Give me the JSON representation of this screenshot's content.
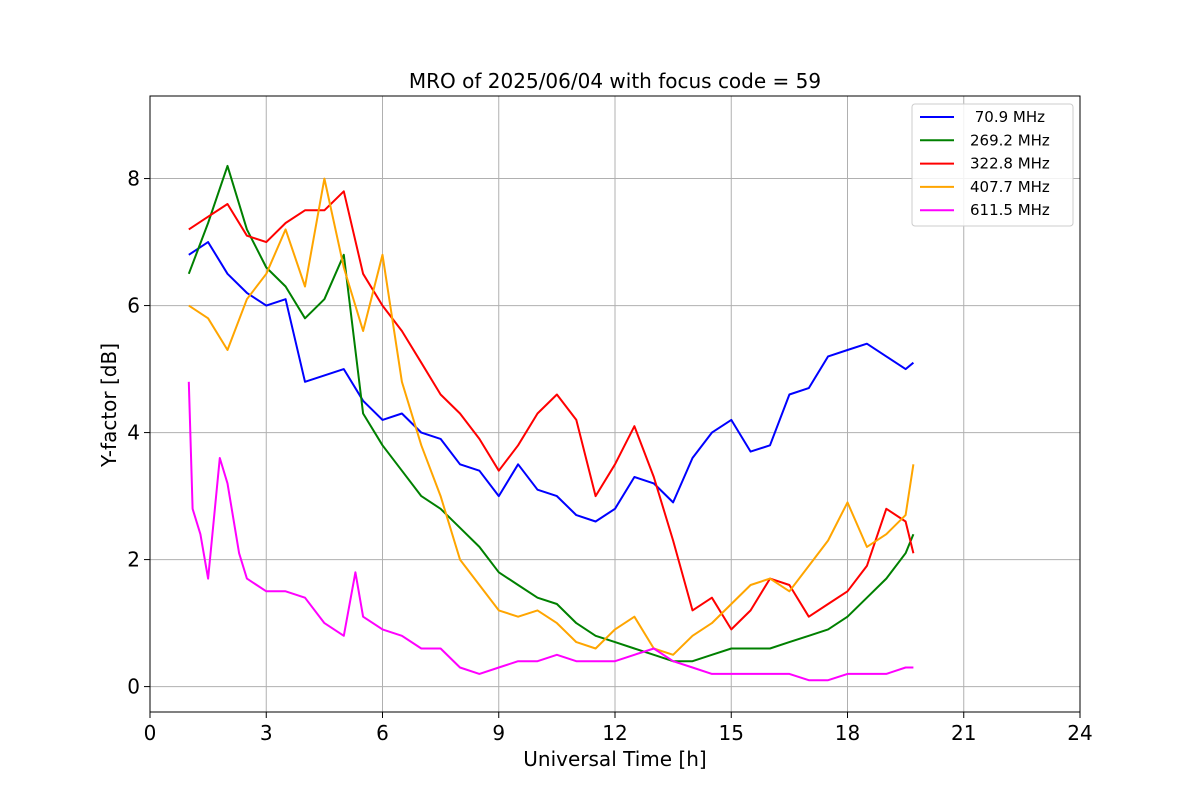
{
  "chart_data": {
    "type": "line",
    "title": "MRO of 2025/06/04 with focus code = 59",
    "xlabel": "Universal Time [h]",
    "ylabel": "Y-factor [dB]",
    "xlim": [
      0,
      24
    ],
    "ylim": [
      -0.4,
      9.3
    ],
    "xticks": [
      0,
      3,
      6,
      9,
      12,
      15,
      18,
      21,
      24
    ],
    "yticks": [
      0,
      2,
      4,
      6,
      8
    ],
    "grid": true,
    "legend_position": "top-right",
    "series": [
      {
        "name": " 70.9 MHz",
        "color": "#0000ff",
        "x": [
          1.0,
          1.5,
          2.0,
          2.5,
          3.0,
          3.5,
          4.0,
          4.5,
          5.0,
          5.5,
          6.0,
          6.5,
          7.0,
          7.5,
          8.0,
          8.5,
          9.0,
          9.5,
          10.0,
          10.5,
          11.0,
          11.5,
          12.0,
          12.5,
          13.0,
          13.5,
          14.0,
          14.5,
          15.0,
          15.5,
          16.0,
          16.5,
          17.0,
          17.5,
          18.0,
          18.5,
          19.0,
          19.5,
          19.7
        ],
        "y": [
          6.8,
          7.0,
          6.5,
          6.2,
          6.0,
          6.1,
          4.8,
          4.9,
          5.0,
          4.5,
          4.2,
          4.3,
          4.0,
          3.9,
          3.5,
          3.4,
          3.0,
          3.5,
          3.1,
          3.0,
          2.7,
          2.6,
          2.8,
          3.3,
          3.2,
          2.9,
          3.6,
          4.0,
          4.2,
          3.7,
          3.8,
          4.6,
          4.7,
          5.2,
          5.3,
          5.4,
          5.2,
          5.0,
          5.1
        ]
      },
      {
        "name": "269.2 MHz",
        "color": "#008000",
        "x": [
          1.0,
          1.5,
          2.0,
          2.5,
          3.0,
          3.5,
          4.0,
          4.5,
          5.0,
          5.5,
          6.0,
          6.5,
          7.0,
          7.5,
          8.0,
          8.5,
          9.0,
          9.5,
          10.0,
          10.5,
          11.0,
          11.5,
          12.0,
          12.5,
          13.0,
          13.5,
          14.0,
          14.5,
          15.0,
          15.5,
          16.0,
          16.5,
          17.0,
          17.5,
          18.0,
          18.5,
          19.0,
          19.5,
          19.7
        ],
        "y": [
          6.5,
          7.3,
          8.2,
          7.2,
          6.6,
          6.3,
          5.8,
          6.1,
          6.8,
          4.3,
          3.8,
          3.4,
          3.0,
          2.8,
          2.5,
          2.2,
          1.8,
          1.6,
          1.4,
          1.3,
          1.0,
          0.8,
          0.7,
          0.6,
          0.5,
          0.4,
          0.4,
          0.5,
          0.6,
          0.6,
          0.6,
          0.7,
          0.8,
          0.9,
          1.1,
          1.4,
          1.7,
          2.1,
          2.4
        ]
      },
      {
        "name": "322.8 MHz",
        "color": "#ff0000",
        "x": [
          1.0,
          1.5,
          2.0,
          2.5,
          3.0,
          3.5,
          4.0,
          4.5,
          5.0,
          5.5,
          6.0,
          6.5,
          7.0,
          7.5,
          8.0,
          8.5,
          9.0,
          9.5,
          10.0,
          10.5,
          11.0,
          11.5,
          12.0,
          12.5,
          13.0,
          13.5,
          14.0,
          14.5,
          15.0,
          15.5,
          16.0,
          16.5,
          17.0,
          17.5,
          18.0,
          18.5,
          19.0,
          19.5,
          19.7
        ],
        "y": [
          7.2,
          7.4,
          7.6,
          7.1,
          7.0,
          7.3,
          7.5,
          7.5,
          7.8,
          6.5,
          6.0,
          5.6,
          5.1,
          4.6,
          4.3,
          3.9,
          3.4,
          3.8,
          4.3,
          4.6,
          4.2,
          3.0,
          3.5,
          4.1,
          3.3,
          2.3,
          1.2,
          1.4,
          0.9,
          1.2,
          1.7,
          1.6,
          1.1,
          1.3,
          1.5,
          1.9,
          2.8,
          2.6,
          2.1
        ]
      },
      {
        "name": "407.7 MHz",
        "color": "#ffa500",
        "x": [
          1.0,
          1.5,
          2.0,
          2.5,
          3.0,
          3.5,
          4.0,
          4.5,
          5.0,
          5.5,
          6.0,
          6.5,
          7.0,
          7.5,
          8.0,
          8.5,
          9.0,
          9.5,
          10.0,
          10.5,
          11.0,
          11.5,
          12.0,
          12.5,
          13.0,
          13.5,
          14.0,
          14.5,
          15.0,
          15.5,
          16.0,
          16.5,
          17.0,
          17.5,
          18.0,
          18.5,
          19.0,
          19.5,
          19.7
        ],
        "y": [
          6.0,
          5.8,
          5.3,
          6.1,
          6.5,
          7.2,
          6.3,
          8.0,
          6.6,
          5.6,
          6.8,
          4.8,
          3.8,
          3.0,
          2.0,
          1.6,
          1.2,
          1.1,
          1.2,
          1.0,
          0.7,
          0.6,
          0.9,
          1.1,
          0.6,
          0.5,
          0.8,
          1.0,
          1.3,
          1.6,
          1.7,
          1.5,
          1.9,
          2.3,
          2.9,
          2.2,
          2.4,
          2.7,
          3.5
        ]
      },
      {
        "name": "611.5 MHz",
        "color": "#ff00ff",
        "x": [
          1.0,
          1.1,
          1.3,
          1.5,
          1.8,
          2.0,
          2.3,
          2.5,
          3.0,
          3.5,
          4.0,
          4.5,
          5.0,
          5.3,
          5.5,
          6.0,
          6.5,
          7.0,
          7.5,
          8.0,
          8.5,
          9.0,
          9.5,
          10.0,
          10.5,
          11.0,
          11.5,
          12.0,
          12.5,
          13.0,
          13.5,
          14.0,
          14.5,
          15.0,
          15.5,
          16.0,
          16.5,
          17.0,
          17.5,
          18.0,
          18.5,
          19.0,
          19.5,
          19.7
        ],
        "y": [
          4.8,
          2.8,
          2.4,
          1.7,
          3.6,
          3.2,
          2.1,
          1.7,
          1.5,
          1.5,
          1.4,
          1.0,
          0.8,
          1.8,
          1.1,
          0.9,
          0.8,
          0.6,
          0.6,
          0.3,
          0.2,
          0.3,
          0.4,
          0.4,
          0.5,
          0.4,
          0.4,
          0.4,
          0.5,
          0.6,
          0.4,
          0.3,
          0.2,
          0.2,
          0.2,
          0.2,
          0.2,
          0.1,
          0.1,
          0.2,
          0.2,
          0.2,
          0.3,
          0.3
        ]
      }
    ]
  }
}
